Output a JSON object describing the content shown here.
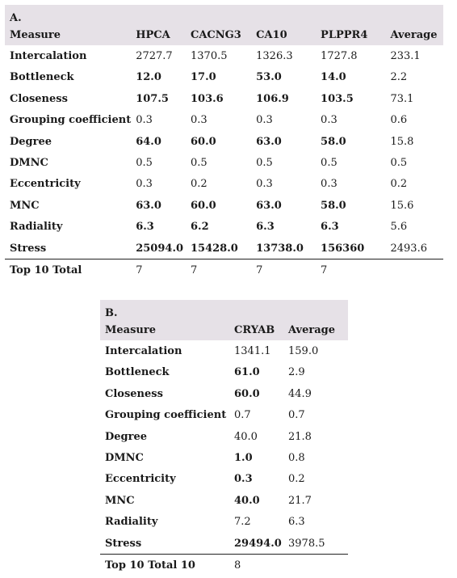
{
  "tableA": {
    "label": "A.",
    "headers": [
      "Measure",
      "HPCA",
      "CACNG3",
      "CA10",
      "PLPPR4",
      "Average"
    ],
    "rows": [
      [
        "Intercalation",
        "2727.7",
        "1370.5",
        "1326.3",
        "1727.8",
        "233.1"
      ],
      [
        "Bottleneck",
        "12.0",
        "17.0",
        "53.0",
        "14.0",
        "2.2"
      ],
      [
        "Closeness",
        "107.5",
        "103.6",
        "106.9",
        "103.5",
        "73.1"
      ],
      [
        "Grouping coefficient",
        "0.3",
        "0.3",
        "0.3",
        "0.3",
        "0.6"
      ],
      [
        "Degree",
        "64.0",
        "60.0",
        "63.0",
        "58.0",
        "15.8"
      ],
      [
        "DMNC",
        "0.5",
        "0.5",
        "0.5",
        "0.5",
        "0.5"
      ],
      [
        "Eccentricity",
        "0.3",
        "0.2",
        "0.3",
        "0.3",
        "0.2"
      ],
      [
        "MNC",
        "63.0",
        "60.0",
        "63.0",
        "58.0",
        "15.6"
      ],
      [
        "Radiality",
        "6.3",
        "6.2",
        "6.3",
        "6.3",
        "5.6"
      ],
      [
        "Stress",
        "25094.0",
        "15428.0",
        "13738.0",
        "156360",
        "2493.6"
      ]
    ],
    "total": [
      "Top 10 Total",
      "7",
      "7",
      "7",
      "7",
      ""
    ]
  },
  "tableB": {
    "label": "B.",
    "headers": [
      "Measure",
      "CRYAB",
      "Average"
    ],
    "rows": [
      [
        "Intercalation",
        "1341.1",
        "159.0"
      ],
      [
        "Bottleneck",
        "61.0",
        "2.9"
      ],
      [
        "Closeness",
        "60.0",
        "44.9"
      ],
      [
        "Grouping coefficient",
        "0.7",
        "0.7"
      ],
      [
        "Degree",
        "40.0",
        "21.8"
      ],
      [
        "DMNC",
        "1.0",
        "0.8"
      ],
      [
        "Eccentricity",
        "0.3",
        "0.2"
      ],
      [
        "MNC",
        "40.0",
        "21.7"
      ],
      [
        "Radiality",
        "7.2",
        "6.3"
      ],
      [
        "Stress",
        "29494.0",
        "3978.5"
      ]
    ],
    "total": [
      "Top 10 Total 10",
      "8",
      ""
    ]
  }
}
